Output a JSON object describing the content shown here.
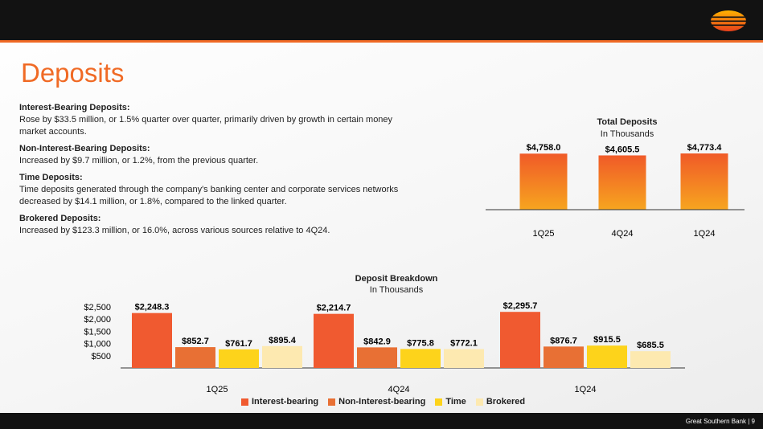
{
  "page": {
    "title": "Deposits",
    "footer": "Great Southern Bank  |  9"
  },
  "text_sections": [
    {
      "heading": "Interest-Bearing Deposits:",
      "body": "Rose by $33.5 million, or 1.5% quarter over quarter, primarily driven by growth in certain money market accounts."
    },
    {
      "heading": "Non-Interest-Bearing Deposits:",
      "body": "Increased by $9.7 million, or 1.2%, from the previous quarter."
    },
    {
      "heading": "Time Deposits:",
      "body": "Time deposits generated through the company's banking center and corporate services networks decreased by $14.1 million, or 1.8%, compared to the linked quarter."
    },
    {
      "heading": "Brokered Deposits:",
      "body": "Increased by $123.3 million, or 16.0%, across various sources relative to 4Q24."
    }
  ],
  "chart_data": [
    {
      "type": "bar",
      "title": "Total Deposits",
      "subtitle": "In Thousands",
      "categories": [
        "1Q25",
        "4Q24",
        "1Q24"
      ],
      "values": [
        4758.0,
        4605.5,
        4773.4
      ],
      "labels": [
        "$4,758.0",
        "$4,605.5",
        "$4,773.4"
      ],
      "bar_color": "#f05a28",
      "bar_color_top": "#f7a51f"
    },
    {
      "type": "bar",
      "title": "Deposit Breakdown",
      "subtitle": "In Thousands",
      "categories": [
        "1Q25",
        "4Q24",
        "1Q24"
      ],
      "ylim": [
        0,
        2500
      ],
      "yticks": [
        500,
        1000,
        1500,
        2000,
        2500
      ],
      "ytick_labels": [
        "$500",
        "$1,000",
        "$1,500",
        "$2,000",
        "$2,500"
      ],
      "series": [
        {
          "name": "Interest-bearing",
          "color": "#f05a30",
          "values": [
            2248.3,
            2214.7,
            2295.7
          ],
          "labels": [
            "$2,248.3",
            "$2,214.7",
            "$2,295.7"
          ]
        },
        {
          "name": "Non-Interest-bearing",
          "color": "#e87034",
          "values": [
            852.7,
            842.9,
            876.7
          ],
          "labels": [
            "$852.7",
            "$842.9",
            "$876.7"
          ]
        },
        {
          "name": "Time",
          "color": "#fdd31b",
          "values": [
            761.7,
            775.8,
            915.5
          ],
          "labels": [
            "$761.7",
            "$775.8",
            "$915.5"
          ]
        },
        {
          "name": "Brokered",
          "color": "#fde9b0",
          "values": [
            895.4,
            772.1,
            685.5
          ],
          "labels": [
            "$895.4",
            "$772.1",
            "$685.5"
          ]
        }
      ]
    }
  ]
}
